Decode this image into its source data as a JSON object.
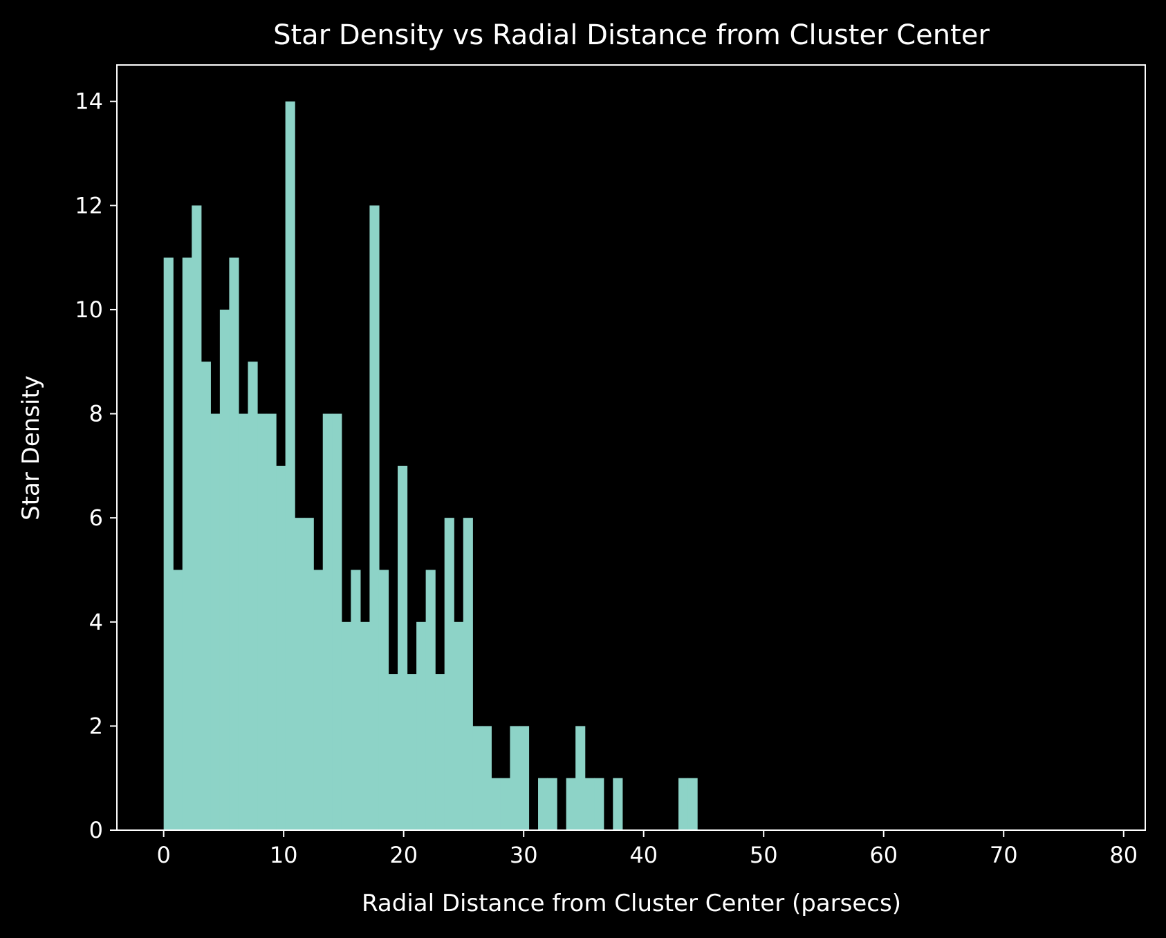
{
  "chart_data": {
    "type": "bar",
    "title": "Star Density vs Radial Distance from Cluster Center",
    "xlabel": "Radial Distance from Cluster Center (parsecs)",
    "ylabel": "Star Density",
    "xlim": [
      -3.9,
      81.8
    ],
    "ylim": [
      0,
      14.7
    ],
    "xticks": [
      0,
      10,
      20,
      30,
      40,
      50,
      60,
      70,
      80
    ],
    "yticks": [
      0,
      2,
      4,
      6,
      8,
      10,
      12,
      14
    ],
    "bin_start": 0.0,
    "bin_width": 0.78,
    "values": [
      11,
      5,
      11,
      12,
      9,
      8,
      10,
      11,
      8,
      9,
      8,
      8,
      7,
      14,
      6,
      6,
      5,
      8,
      8,
      4,
      5,
      4,
      12,
      5,
      3,
      7,
      3,
      4,
      5,
      3,
      6,
      4,
      6,
      2,
      2,
      1,
      1,
      2,
      2,
      0,
      1,
      1,
      0,
      1,
      2,
      1,
      1,
      0,
      1,
      0,
      0,
      0,
      0,
      0,
      0,
      1,
      1,
      0,
      0,
      0,
      0,
      0,
      0,
      0,
      0,
      0,
      0,
      0,
      0,
      0,
      0,
      0,
      0,
      0,
      0,
      0,
      0,
      0,
      0,
      0,
      0,
      0,
      0,
      0,
      0,
      0,
      0,
      0,
      0,
      0,
      0,
      0,
      0,
      0,
      0,
      0,
      0,
      0,
      0,
      0
    ],
    "bar_color": "#8dd3c7",
    "background": "#000000",
    "grid": false
  }
}
